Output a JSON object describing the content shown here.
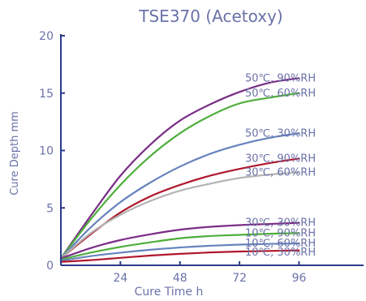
{
  "chart_data": {
    "type": "line",
    "title": "TSE370 (Acetoxy)",
    "xlabel": "Cure Time  h",
    "ylabel": "Cure Depth  mm",
    "xlim": [
      0,
      105
    ],
    "ylim": [
      0,
      20
    ],
    "x_ticks": [
      24,
      48,
      72,
      96
    ],
    "y_ticks": [
      0,
      5,
      10,
      15,
      20
    ],
    "grid": false,
    "legend": "none",
    "axis_color": "#2b3a8a",
    "label_color": "#6a72a8",
    "series": [
      {
        "name": "50℃, 90%RH",
        "color": "#7a2d86",
        "x": [
          0,
          12,
          24,
          36,
          48,
          60,
          72,
          84,
          96
        ],
        "y": [
          0.6,
          4.3,
          7.8,
          10.5,
          12.6,
          14.0,
          15.1,
          15.9,
          16.3
        ]
      },
      {
        "name": "50℃, 60%RH",
        "color": "#4fae3c",
        "x": [
          0,
          12,
          24,
          36,
          48,
          60,
          72,
          84,
          96
        ],
        "y": [
          0.6,
          4.0,
          7.0,
          9.5,
          11.5,
          13.0,
          14.1,
          14.6,
          15.0
        ]
      },
      {
        "name": "50℃, 30%RH",
        "color": "#6683bd",
        "x": [
          0,
          12,
          24,
          36,
          48,
          60,
          72,
          84,
          96
        ],
        "y": [
          0.6,
          3.3,
          5.5,
          7.2,
          8.6,
          9.7,
          10.5,
          11.1,
          11.5
        ]
      },
      {
        "name": "30℃, 90%RH",
        "color": "#b0182c",
        "x": [
          0,
          12,
          24,
          36,
          48,
          60,
          72,
          84,
          96
        ],
        "y": [
          0.6,
          2.7,
          4.6,
          6.0,
          7.0,
          7.8,
          8.4,
          8.9,
          9.3
        ]
      },
      {
        "name": "30℃, 60%RH",
        "color": "#b3b3b3",
        "x": [
          0,
          12,
          24,
          36,
          48,
          60,
          72,
          84,
          96
        ],
        "y": [
          0.6,
          2.8,
          4.4,
          5.6,
          6.5,
          7.1,
          7.6,
          7.9,
          8.1
        ]
      },
      {
        "name": "30℃, 30%RH",
        "color": "#7a2d86",
        "x": [
          0,
          12,
          24,
          36,
          48,
          60,
          72,
          84,
          96
        ],
        "y": [
          0.6,
          1.5,
          2.2,
          2.7,
          3.1,
          3.35,
          3.5,
          3.6,
          3.7
        ]
      },
      {
        "name": "10℃, 90%RH",
        "color": "#4fae3c",
        "x": [
          0,
          12,
          24,
          36,
          48,
          60,
          72,
          84,
          96
        ],
        "y": [
          0.5,
          1.1,
          1.6,
          2.0,
          2.35,
          2.55,
          2.65,
          2.75,
          2.8
        ]
      },
      {
        "name": "10℃, 60%RH",
        "color": "#6683bd",
        "x": [
          0,
          12,
          24,
          36,
          48,
          60,
          72,
          84,
          96
        ],
        "y": [
          0.4,
          0.8,
          1.1,
          1.35,
          1.55,
          1.7,
          1.8,
          1.87,
          1.9
        ]
      },
      {
        "name": "10℃, 30%RH",
        "color": "#b0182c",
        "x": [
          0,
          12,
          24,
          36,
          48,
          60,
          72,
          84,
          96
        ],
        "y": [
          0.3,
          0.45,
          0.65,
          0.85,
          1.0,
          1.12,
          1.2,
          1.25,
          1.3
        ]
      }
    ]
  }
}
